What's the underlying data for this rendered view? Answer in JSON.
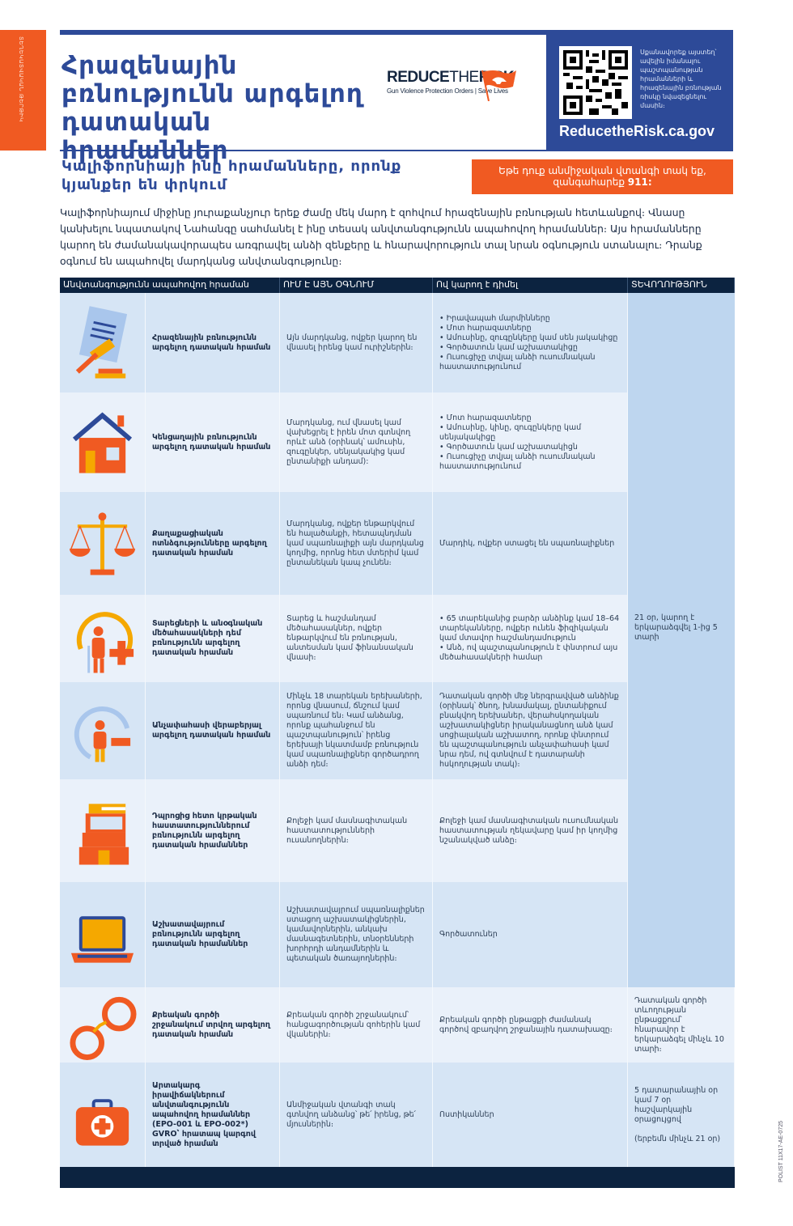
{
  "sidebar_label": "ՏԵՂԵԿԱՏՎԱԿԱՆ ԹԵՐԹԻԿ",
  "title": "Հրազենային բռնությունն արգելող դատական հրամաններ",
  "logo": {
    "word1": "REDUCE",
    "word2": "THE",
    "word3": "RISK",
    "tagline": "Gun Violence Protection Orders | Save Lives"
  },
  "qr_text": "Սքանավորեք այստեղ՝ ավելին իմանալու պաշտպանության հրամանների և հրազենային բռնության ռիսկը նվազեցնելու մասին։",
  "url": "ReducetheRisk.ca.gov",
  "subtitle": "Կալիֆորնիայի ինը հրամանները, որոնք կյանքեր են փրկում",
  "emergency": {
    "text": "Եթե դուք անմիջական վտանգի տակ եք, զանգահարեք",
    "number": "911:"
  },
  "intro": "Կալիֆորնիայում միջինը յուրաքանչյուր երեք ժամը մեկ մարդ է զոհվում հրազենային բռնության հետևանքով։ Վնասը կանխելու նպատակով Նահանգը սահմանել է ինը տեսակ անվտանգությունն ապահովող հրամաններ։ Այս հրամանները կարող են ժամանակավորապես առգրավել անձի զենքերը և հնարավորություն տալ նրան օգնություն ստանալու։ Դրանք օգնում են ապահովել մարդկանց անվտանգությունը։",
  "table": {
    "headers": [
      "Անվտանգությունն ապահովող հրաման",
      "ՈՒՄ Է ԱՅՆ ՕԳՆՈՒՄ",
      "Ով կարող է դիմել",
      "ՏԵՎՈՂՈՒԹՅՈՒՆ"
    ],
    "duration_shared": "21 օր, կարող է երկարաձգվել 1-ից 5 տարի",
    "rows": [
      {
        "icon": "gavel-document-icon",
        "name": "Հրազենային բռնությունն արգելող դատական հրաման",
        "helps": "Այն մարդկանց, ովքեր կարող են վնասել իրենց կամ ուրիշներին։",
        "who": [
          "• Իրավապահ մարմինները",
          "• Մոտ հարազատները",
          "• Ամուսինը, զուգընկերը կամ սեն յակակիցը",
          "• Գործատուն կամ աշխատակիցը",
          "• Ուսուցիչը տվյալ անձի ուսումնական հաստատությունում"
        ]
      },
      {
        "icon": "house-icon",
        "name": "Կենցաղային բռնությունն արգելող դատական հրաման",
        "helps": "Մարդկանց, ում վնասել կամ վախեցրել է իրեն մոտ գտնվող որևէ անձ (օրինակ՝ ամուսին, զուգընկեր, սենյակակից կամ ընտանիքի անդամ):",
        "who": [
          "• Մոտ հարազատները",
          "• Ամուսինը, կինը, զուգընկերը կամ սենյակակիցը",
          "• Գործատուն կամ աշխատակիցն",
          "• Ուսուցիչը տվյալ անձի ուսումնական հաստատությունում"
        ]
      },
      {
        "icon": "scales-icon",
        "name": "Քաղաքացիական ոտնձգությունները արգելող դատական հրաման",
        "helps": "Մարդկանց, ովքեր ենթարկվում են հալածանքի, հետապնդման կամ սպառնալիքի այն մարդկանց կողմից, որոնց հետ մտերիմ կամ ընտանեկան կապ չունեն։",
        "who": [
          "Մարդիկ, ովքեր ստացել են սպառնալիքներ"
        ]
      },
      {
        "icon": "elder-cane-icon",
        "name": "Տարեցների և անօգնական մեծահասակների դեմ բռնությունն արգելող դատական հրաման",
        "helps": "Տարեց և հաշմանդամ մեծահասակներ, ովքեր ենթարկվում են բռնության, անտեսման կամ ֆինանսական վնասի։",
        "who": [
          "• 65 տարեկանից բարձր անձինք կամ 18–64 տարեկանները, ովքեր ունեն ֆիզիկական կամ մտավոր հաշմանդամություն",
          "• Անձ, ով պաշտպանություն է փնտրում այս մեծահասակների համար"
        ]
      },
      {
        "icon": "child-icon",
        "name": "Անչափահասի վերաբերյալ արգելող դատական հրաման",
        "helps": "Մինչև 18 տարեկան երեխաների, որոնց վնասում, ճնշում կամ սպառնում են։ Կամ անձանց, որոնք պահանջում են պաշտպանություն՝ իրենց երեխայի նկատմամբ բռնություն կամ սպառնալիքներ գործադրող անձի դեմ։",
        "who": [
          "Դատական գործի մեջ ներգրավված անձինք (օրինակ՝ ծնող, խնամակալ, ընտանիքում բնակվող երեխաներ, վերահսկողական աշխատակիցներ իրականացնող անձ կամ սոցիալական աշխատող, որոնք փնտրում են պաշտպանություն անչափահասի կամ նրա դեմ, ով գտնվում է դատարանի հսկողության տակ)։"
        ]
      },
      {
        "icon": "books-icon",
        "name": "Դպրոցից հետո կրթական հաստատություններում բռնությունն արգելող դատական հրամաններ",
        "helps": "Քոլեջի կամ մասնագիտական հաստատությունների ուսանողներին։",
        "who": [
          "Քոլեջի կամ մասնագիտական ուսումնական հաստատության ղեկավարը կամ իր կողմից նշանակված անձը։"
        ]
      },
      {
        "icon": "laptop-icon",
        "name": "Աշխատավայրում բռնությունն արգելող դատական հրամաններ",
        "helps": "Աշխատավայրում սպառնալիքներ ստացող աշխատակիցներին, կամավորներին, անկախ մասնագետներին, տնօրենների խորհրդի անդամներին և պետական ծառայողներին։",
        "who": [
          "Գործատուներ"
        ]
      },
      {
        "icon": "handcuffs-icon",
        "name": "Քրեական գործի շրջանակում տրվող արգելող դատական հրաման",
        "helps": "Քրեական գործի շրջանակում՝ հանցագործության զոհերին կամ վկաներին։",
        "who": [
          "Քրեական գործի ընթացքի ժամանակ գործով զբաղվող շրջանային դատախազը։"
        ],
        "duration": "Դատական գործի տևողության ընթացքում՝ հնարավոր է երկարաձգել մինչև 10 տարի։"
      },
      {
        "icon": "first-aid-kit-icon",
        "name": "Արտակարգ իրավիճակներում անվտանգությունն ապահովող հրամաններ (EPO-001 և EPO-002*) GVRO՝ հրատապ կարգով տրված հրաման",
        "helps": "Անմիջական վտանգի տակ գտնվող անձանց՝ թե՛ իրենց, թե՛ մյուսներին։",
        "who": [
          "Ոստիկաններ"
        ],
        "duration": "5 դատարանային օր կամ 7 օր հաշվարկային օրացույցով",
        "duration_note": "(երբեմն մինչև 21 օր)"
      }
    ]
  },
  "form_code": "POLIST 11X17-AE-0725",
  "colors": {
    "navy": "#0c2340",
    "blue": "#2d4a98",
    "orange": "#f05a22",
    "row_a": "#d6e5f5",
    "row_b": "#eaf1fa"
  }
}
